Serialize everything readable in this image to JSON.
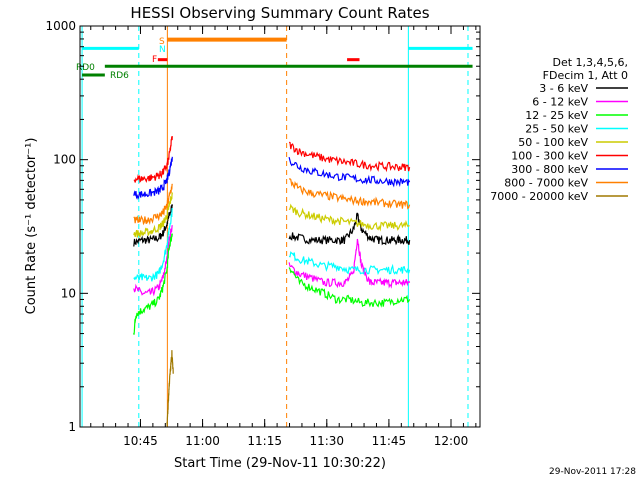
{
  "chart_data": {
    "type": "line",
    "title": "HESSI Observing Summary Count Rates",
    "xlabel": "Start Time (29-Nov-11 10:30:22)",
    "ylabel": "Count Rate (s⁻¹ detector⁻¹)",
    "x_unit": "minutes after 10:30:22 UT",
    "xlim": [
      0,
      96.6
    ],
    "ylim": [
      1,
      1000
    ],
    "y_scale": "log",
    "grid": false,
    "legend_position": "right",
    "footer": "29-Nov-2011 17:28",
    "x_ticks": [
      {
        "x": 14.6,
        "label": "10:45"
      },
      {
        "x": 29.6,
        "label": "11:00"
      },
      {
        "x": 44.6,
        "label": "11:15"
      },
      {
        "x": 59.6,
        "label": "11:30"
      },
      {
        "x": 74.6,
        "label": "11:45"
      },
      {
        "x": 89.6,
        "label": "12:00"
      }
    ],
    "y_ticks": [
      {
        "y": 1,
        "label": "1"
      },
      {
        "y": 10,
        "label": "10"
      },
      {
        "y": 100,
        "label": "100"
      },
      {
        "y": 1000,
        "label": "1000"
      }
    ],
    "legend_header": [
      "Det 1,3,4,5,6,",
      "FDecim 1, Att 0"
    ],
    "series": [
      {
        "name": "3 - 6 keV",
        "color": "#000000",
        "segments": [
          {
            "x": [
              13.0,
              15,
              17,
              19,
              20,
              21,
              21.5,
              22.3
            ],
            "y": [
              24,
              25,
              25,
              26,
              28,
              33,
              38,
              45
            ]
          },
          {
            "x": [
              50.5,
              53,
              56,
              59,
              62,
              64,
              66,
              67,
              68,
              70,
              72,
              74,
              76,
              78,
              79.6
            ],
            "y": [
              27,
              26,
              25,
              25,
              25,
              25,
              30,
              38,
              30,
              26,
              25,
              25,
              25,
              25,
              25
            ]
          }
        ]
      },
      {
        "name": "6 - 12 keV",
        "color": "#ff00ff",
        "segments": [
          {
            "x": [
              13.0,
              15,
              17,
              19,
              20,
              21,
              21.5,
              22.3
            ],
            "y": [
              11,
              10,
              10,
              11,
              13,
              18,
              25,
              32
            ]
          },
          {
            "x": [
              50.5,
              53,
              56,
              59,
              62,
              64,
              66,
              67,
              68,
              70,
              72,
              74,
              76,
              78,
              79.6
            ],
            "y": [
              16,
              14,
              13,
              12,
              12,
              12,
              14,
              26,
              16,
              12,
              12,
              12,
              12,
              12,
              12
            ]
          }
        ]
      },
      {
        "name": "12 - 25 keV",
        "color": "#00ff00",
        "segments": [
          {
            "x": [
              13.0,
              13.5,
              15,
              17,
              19,
              20,
              21,
              21.5,
              22.3
            ],
            "y": [
              5,
              7,
              7.5,
              8,
              9,
              11,
              15,
              22,
              28
            ]
          },
          {
            "x": [
              50.5,
              53,
              56,
              59,
              62,
              65,
              68,
              71,
              74,
              77,
              79.6
            ],
            "y": [
              16,
              12,
              11,
              10,
              9,
              9,
              8.5,
              8.5,
              8.5,
              9,
              9
            ]
          }
        ]
      },
      {
        "name": "25 - 50 keV",
        "color": "#00ffff",
        "segments": [
          {
            "x": [
              13.0,
              15,
              17,
              19,
              20,
              21,
              21.5,
              22.3
            ],
            "y": [
              13,
              13,
              13,
              14,
              17,
              23,
              30,
              42
            ]
          },
          {
            "x": [
              50.5,
              53,
              56,
              59,
              62,
              65,
              68,
              71,
              74,
              77,
              79.6
            ],
            "y": [
              20,
              18,
              17,
              16,
              16,
              15,
              15,
              15,
              15,
              15,
              15
            ]
          }
        ]
      },
      {
        "name": "50 - 100 keV",
        "color": "#cccc00",
        "segments": [
          {
            "x": [
              13.0,
              15,
              17,
              19,
              20,
              21,
              21.5,
              22.3
            ],
            "y": [
              28,
              28,
              29,
              31,
              33,
              38,
              45,
              55
            ]
          },
          {
            "x": [
              50.5,
              53,
              56,
              59,
              62,
              65,
              68,
              71,
              74,
              77,
              79.6
            ],
            "y": [
              44,
              40,
              38,
              36,
              35,
              34,
              33,
              32,
              32,
              32,
              32
            ]
          }
        ]
      },
      {
        "name": "100 - 300 keV",
        "color": "#ff0000",
        "segments": [
          {
            "x": [
              13.0,
              15,
              17,
              19,
              20,
              21,
              21.5,
              22.3
            ],
            "y": [
              72,
              72,
              73,
              76,
              80,
              90,
              105,
              150
            ]
          },
          {
            "x": [
              50.5,
              53,
              56,
              59,
              62,
              65,
              68,
              71,
              74,
              77,
              79.6
            ],
            "y": [
              130,
              115,
              108,
              102,
              98,
              95,
              92,
              90,
              89,
              88,
              88
            ]
          }
        ]
      },
      {
        "name": "300 - 800 keV",
        "color": "#0000ff",
        "segments": [
          {
            "x": [
              13.0,
              15,
              17,
              19,
              20,
              21,
              21.5,
              22.3
            ],
            "y": [
              55,
              55,
              56,
              58,
              62,
              70,
              80,
              105
            ]
          },
          {
            "x": [
              50.5,
              53,
              56,
              59,
              62,
              65,
              68,
              71,
              74,
              77,
              79.6
            ],
            "y": [
              100,
              88,
              82,
              78,
              75,
              73,
              71,
              70,
              69,
              68,
              68
            ]
          }
        ]
      },
      {
        "name": "800 - 7000 keV",
        "color": "#ff8000",
        "segments": [
          {
            "x": [
              13.0,
              15,
              17,
              19,
              20,
              21,
              21.5,
              22.3
            ],
            "y": [
              35,
              35,
              36,
              38,
              40,
              45,
              52,
              65
            ]
          },
          {
            "x": [
              50.5,
              53,
              56,
              59,
              62,
              65,
              68,
              71,
              74,
              77,
              79.6
            ],
            "y": [
              70,
              60,
              56,
              54,
              52,
              50,
              49,
              48,
              47,
              46,
              46
            ]
          }
        ]
      },
      {
        "name": "7000 - 20000 keV",
        "color": "#a07800",
        "segments": [
          {
            "x": [
              21.0,
              21.3,
              21.6,
              21.9,
              22.2,
              22.5
            ],
            "y": [
              1,
              1.5,
              2.2,
              2.8,
              3.6,
              2.5
            ]
          }
        ]
      }
    ],
    "vertical_lines": [
      {
        "x": 0.5,
        "color": "#00ffff",
        "style": "solid"
      },
      {
        "x": 14.2,
        "color": "#00ffff",
        "style": "dashed"
      },
      {
        "x": 21.1,
        "color": "#ff8000",
        "style": "solid"
      },
      {
        "x": 49.9,
        "color": "#ff8000",
        "style": "dashed"
      },
      {
        "x": 79.3,
        "color": "#00ffff",
        "style": "solid"
      },
      {
        "x": 93.7,
        "color": "#00ffff",
        "style": "dashed"
      }
    ],
    "flag_bars": [
      {
        "label": "",
        "color": "#00ffff",
        "y": 680,
        "x": [
          0.5,
          14.2
        ],
        "width": 3
      },
      {
        "label": "",
        "color": "#00ffff",
        "y": 680,
        "x": [
          79.3,
          94.8
        ],
        "width": 3
      },
      {
        "label": "S",
        "color": "#ff8000",
        "y": 790,
        "x": [
          21.1,
          49.9
        ],
        "width": 4
      },
      {
        "label": "N",
        "color": "#00ffff",
        "y": 680,
        "x": [],
        "width": 0
      },
      {
        "label": "F",
        "color": "#ff0000",
        "y": 560,
        "x": [
          18.8,
          21.1
        ],
        "width": 3
      },
      {
        "label": "",
        "color": "#ff0000",
        "y": 560,
        "x": [
          64.5,
          67.5
        ],
        "width": 3
      },
      {
        "label": "RD0",
        "color": "#008000",
        "y": 500,
        "x": [
          6.0,
          94.8
        ],
        "width": 3
      },
      {
        "label": "RD6",
        "color": "#008000",
        "y": 430,
        "x": [
          0.5,
          6.0
        ],
        "width": 3
      }
    ]
  }
}
